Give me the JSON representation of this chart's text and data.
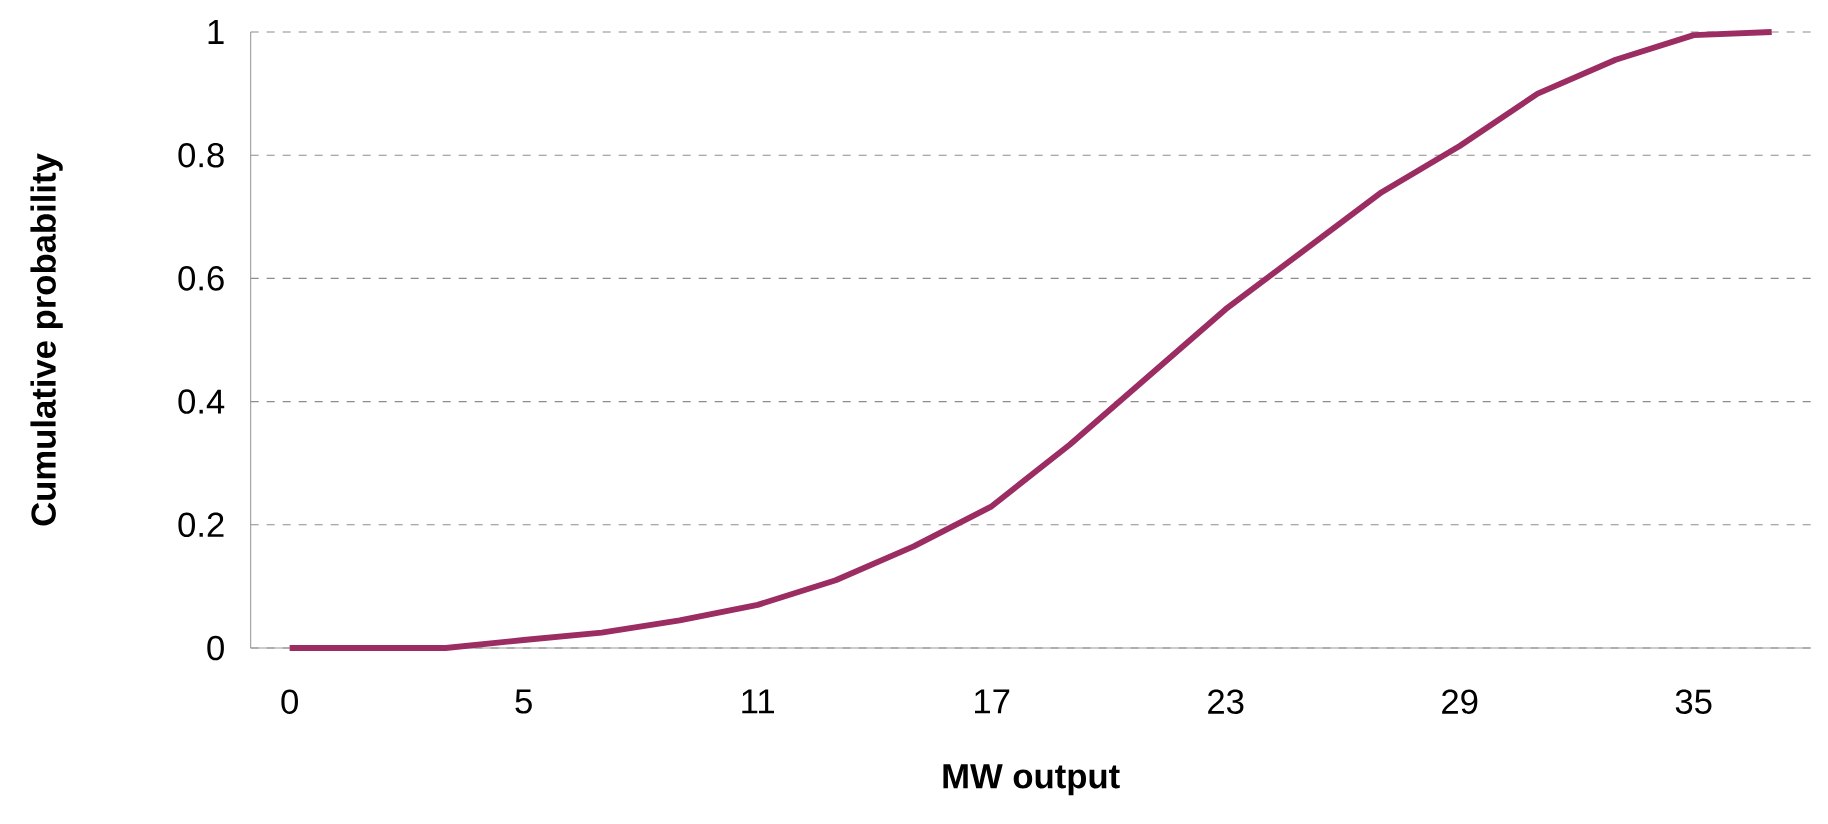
{
  "chart_data": {
    "type": "line",
    "xlabel": "MW output",
    "ylabel": "Cumulative probability",
    "categories": [
      "0",
      null,
      null,
      "5",
      null,
      null,
      "11",
      null,
      null,
      "17",
      null,
      null,
      "23",
      null,
      null,
      "29",
      null,
      null,
      "35",
      null
    ],
    "series": [
      {
        "color": "#9b2d62",
        "values": [
          0,
          0,
          0,
          0.013,
          0.025,
          0.045,
          0.07,
          0.11,
          0.165,
          0.23,
          0.33,
          0.44,
          0.55,
          0.645,
          0.74,
          0.815,
          0.9,
          0.955,
          0.995,
          1.0
        ]
      }
    ],
    "ylim": [
      0,
      1
    ],
    "yticks": [
      0,
      0.2,
      0.4,
      0.6,
      0.8,
      1
    ],
    "grid": "y",
    "marker": "none",
    "line_style": "solid"
  }
}
